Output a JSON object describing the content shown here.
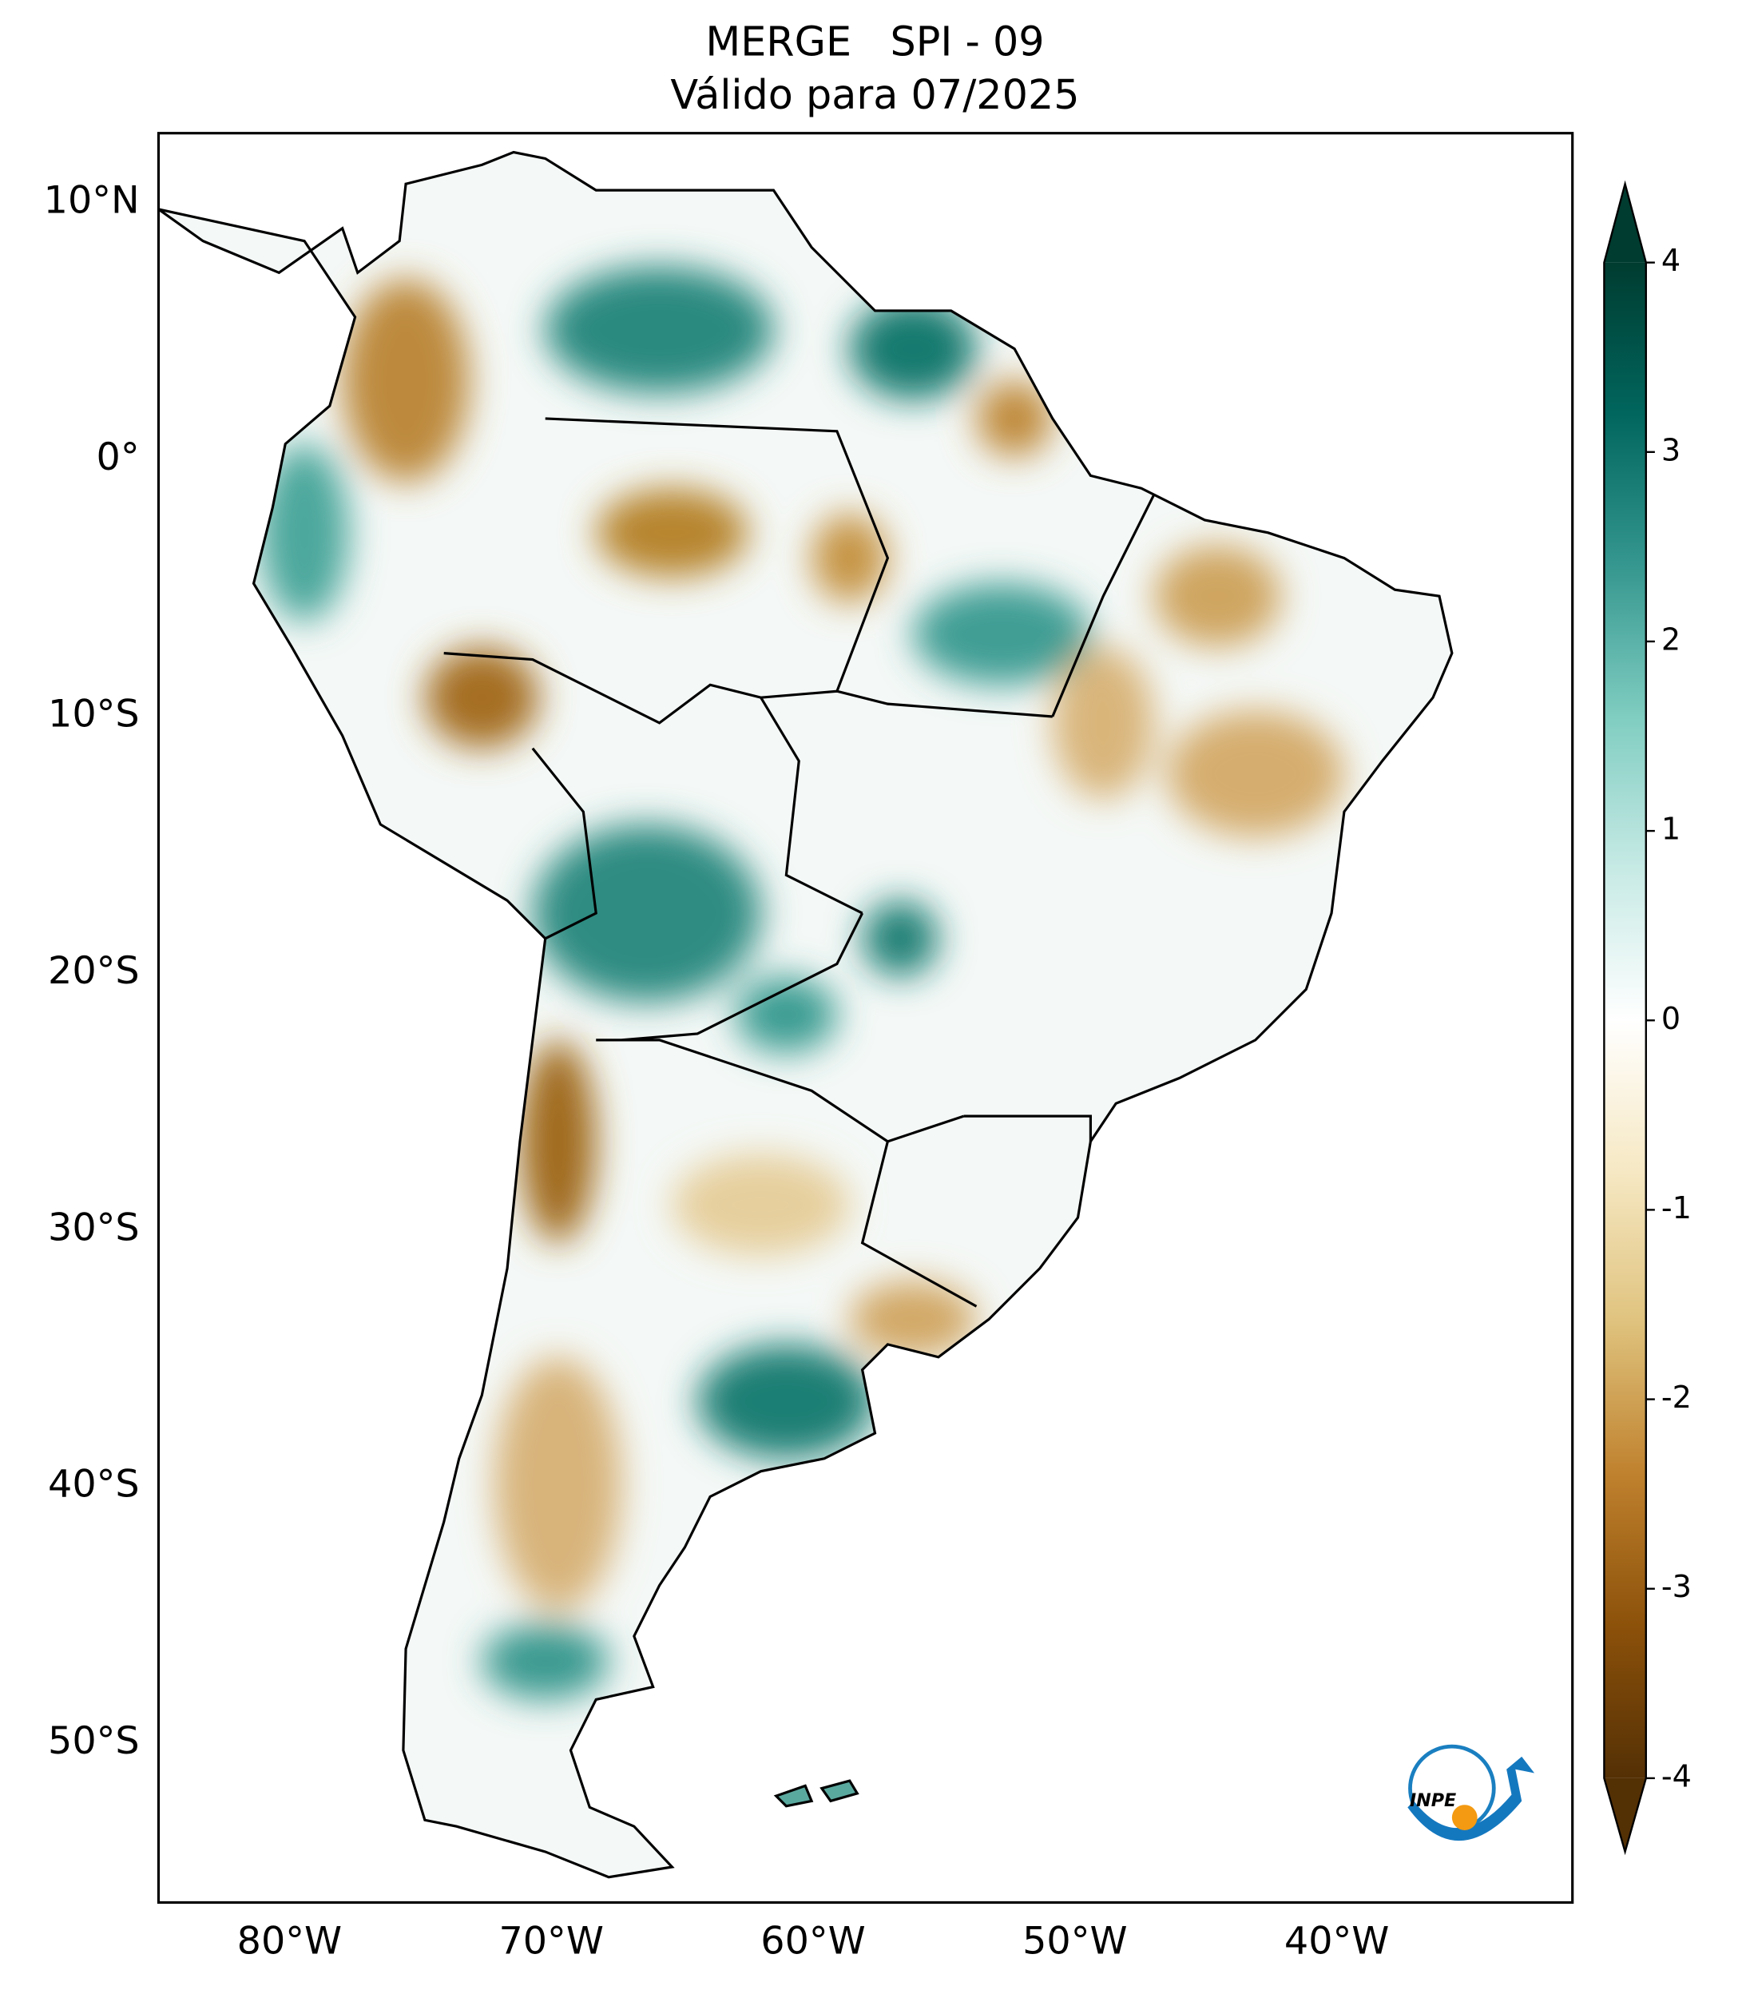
{
  "chart_data": {
    "type": "map",
    "title": "MERGE   SPI - 09",
    "subtitle": "Válido para 07/2025",
    "xlim": [
      -85,
      -31
    ],
    "ylim": [
      -56.2,
      12.7
    ],
    "xticks": [
      {
        "value": -80,
        "label": "80°W"
      },
      {
        "value": -70,
        "label": "70°W"
      },
      {
        "value": -60,
        "label": "60°W"
      },
      {
        "value": -50,
        "label": "50°W"
      },
      {
        "value": -40,
        "label": "40°W"
      }
    ],
    "yticks": [
      {
        "value": 10,
        "label": "10°N"
      },
      {
        "value": 0,
        "label": "0°"
      },
      {
        "value": -10,
        "label": "10°S"
      },
      {
        "value": -20,
        "label": "20°S"
      },
      {
        "value": -30,
        "label": "30°S"
      },
      {
        "value": -40,
        "label": "40°S"
      },
      {
        "value": -50,
        "label": "50°S"
      }
    ],
    "colorbar": {
      "lim": [
        -4,
        4
      ],
      "ticks": [
        -4,
        -3,
        -2,
        -1,
        0,
        1,
        2,
        3,
        4
      ],
      "colors": [
        "#543005",
        "#8c510a",
        "#bf812d",
        "#dfc27d",
        "#f6e8c3",
        "#ffffff",
        "#c7eae5",
        "#80cdc1",
        "#35978f",
        "#01665e",
        "#003c30"
      ]
    },
    "logo_text": "INPE"
  }
}
